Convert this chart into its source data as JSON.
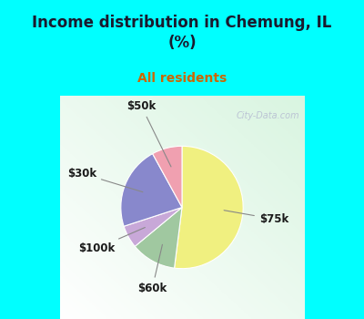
{
  "title": "Income distribution in Chemung, IL\n(%)",
  "subtitle": "All residents",
  "title_color": "#1a1a2e",
  "subtitle_color": "#cc6600",
  "background_cyan": "#00ffff",
  "slices": [
    {
      "label": "$75k",
      "value": 52,
      "color": "#f0f080"
    },
    {
      "label": "$30k",
      "value": 22,
      "color": "#8888cc"
    },
    {
      "label": "$50k",
      "value": 8,
      "color": "#f0a0b0"
    },
    {
      "label": "$100k",
      "value": 6,
      "color": "#c8a8d8"
    },
    {
      "label": "$60k",
      "value": 12,
      "color": "#a0c8a0"
    }
  ],
  "watermark": "City-Data.com",
  "figsize": [
    4.0,
    3.5
  ],
  "dpi": 100,
  "chart_bg_colors": [
    "#d0ead0",
    "#e8f5e8",
    "#f0faf0",
    "#ffffff"
  ],
  "startangle": 90,
  "label_fontsize": 8.5
}
